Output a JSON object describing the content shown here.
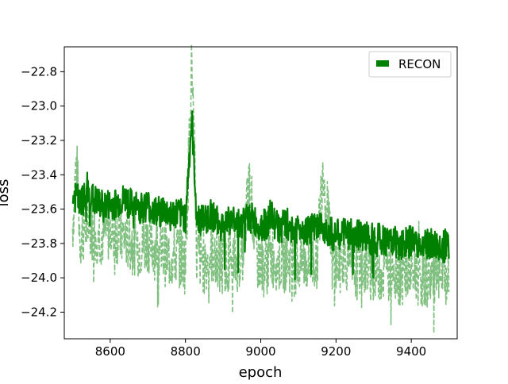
{
  "chart_data": {
    "type": "line",
    "title": "",
    "xlabel": "epoch",
    "ylabel": "loss",
    "xlim": [
      8478,
      9522
    ],
    "ylim": [
      -24.355,
      -22.655
    ],
    "xticks": [
      8600,
      8800,
      9000,
      9200,
      9400
    ],
    "yticks": [
      -22.8,
      -23.0,
      -23.2,
      -23.4,
      -23.6,
      -23.8,
      -24.0,
      -24.2
    ],
    "legend": {
      "position": "top-right",
      "entries": [
        "RECON"
      ]
    },
    "grid": false,
    "x_range": [
      8500,
      9500
    ],
    "series": [
      {
        "name": "RECON",
        "style": "solid",
        "color": "#008000",
        "points": [
          [
            8500,
            -23.52
          ],
          [
            8510,
            -23.5
          ],
          [
            8520,
            -23.55
          ],
          [
            8540,
            -23.49
          ],
          [
            8560,
            -23.53
          ],
          [
            8580,
            -23.56
          ],
          [
            8600,
            -23.55
          ],
          [
            8620,
            -23.54
          ],
          [
            8640,
            -23.52
          ],
          [
            8660,
            -23.56
          ],
          [
            8680,
            -23.57
          ],
          [
            8700,
            -23.55
          ],
          [
            8720,
            -23.6
          ],
          [
            8740,
            -23.58
          ],
          [
            8760,
            -23.61
          ],
          [
            8780,
            -23.6
          ],
          [
            8800,
            -23.62
          ],
          [
            8817,
            -23.05
          ],
          [
            8830,
            -23.63
          ],
          [
            8850,
            -23.64
          ],
          [
            8870,
            -23.6
          ],
          [
            8890,
            -23.67
          ],
          [
            8910,
            -23.65
          ],
          [
            8930,
            -23.64
          ],
          [
            8950,
            -23.66
          ],
          [
            8970,
            -23.62
          ],
          [
            8990,
            -23.66
          ],
          [
            9010,
            -23.67
          ],
          [
            9030,
            -23.63
          ],
          [
            9050,
            -23.69
          ],
          [
            9070,
            -23.66
          ],
          [
            9090,
            -23.7
          ],
          [
            9110,
            -23.68
          ],
          [
            9130,
            -23.7
          ],
          [
            9150,
            -23.69
          ],
          [
            9170,
            -23.68
          ],
          [
            9190,
            -23.72
          ],
          [
            9210,
            -23.73
          ],
          [
            9230,
            -23.71
          ],
          [
            9250,
            -23.74
          ],
          [
            9270,
            -23.72
          ],
          [
            9290,
            -23.75
          ],
          [
            9310,
            -23.74
          ],
          [
            9330,
            -23.76
          ],
          [
            9350,
            -23.75
          ],
          [
            9370,
            -23.78
          ],
          [
            9390,
            -23.77
          ],
          [
            9410,
            -23.76
          ],
          [
            9430,
            -23.79
          ],
          [
            9450,
            -23.78
          ],
          [
            9470,
            -23.8
          ],
          [
            9490,
            -23.79
          ]
        ],
        "band": [
          -0.12,
          0.07
        ]
      },
      {
        "name": "",
        "style": "dashed",
        "color": "#7fbf7f",
        "points": [
          [
            8500,
            -23.7
          ],
          [
            8510,
            -23.3
          ],
          [
            8520,
            -23.75
          ],
          [
            8540,
            -23.68
          ],
          [
            8560,
            -23.72
          ],
          [
            8580,
            -23.74
          ],
          [
            8600,
            -23.7
          ],
          [
            8620,
            -23.73
          ],
          [
            8640,
            -23.76
          ],
          [
            8660,
            -23.78
          ],
          [
            8680,
            -23.8
          ],
          [
            8700,
            -23.77
          ],
          [
            8720,
            -23.82
          ],
          [
            8740,
            -23.84
          ],
          [
            8760,
            -23.88
          ],
          [
            8780,
            -23.85
          ],
          [
            8800,
            -23.9
          ],
          [
            8817,
            -22.72
          ],
          [
            8830,
            -23.86
          ],
          [
            8850,
            -23.9
          ],
          [
            8870,
            -23.84
          ],
          [
            8890,
            -23.92
          ],
          [
            8910,
            -23.88
          ],
          [
            8930,
            -23.9
          ],
          [
            8950,
            -23.86
          ],
          [
            8970,
            -23.45
          ],
          [
            8990,
            -23.88
          ],
          [
            9010,
            -23.92
          ],
          [
            9030,
            -23.86
          ],
          [
            9050,
            -23.9
          ],
          [
            9070,
            -23.88
          ],
          [
            9090,
            -23.92
          ],
          [
            9110,
            -23.89
          ],
          [
            9130,
            -23.9
          ],
          [
            9150,
            -23.87
          ],
          [
            9165,
            -23.33
          ],
          [
            9190,
            -23.91
          ],
          [
            9210,
            -23.92
          ],
          [
            9230,
            -23.88
          ],
          [
            9250,
            -23.94
          ],
          [
            9270,
            -23.9
          ],
          [
            9290,
            -23.95
          ],
          [
            9310,
            -23.93
          ],
          [
            9330,
            -23.96
          ],
          [
            9350,
            -23.92
          ],
          [
            9370,
            -23.97
          ],
          [
            9390,
            -23.95
          ],
          [
            9410,
            -23.96
          ],
          [
            9430,
            -23.98
          ],
          [
            9450,
            -23.97
          ],
          [
            9470,
            -24.0
          ],
          [
            9490,
            -23.98
          ]
        ],
        "band": [
          -0.2,
          0.18
        ]
      }
    ]
  }
}
